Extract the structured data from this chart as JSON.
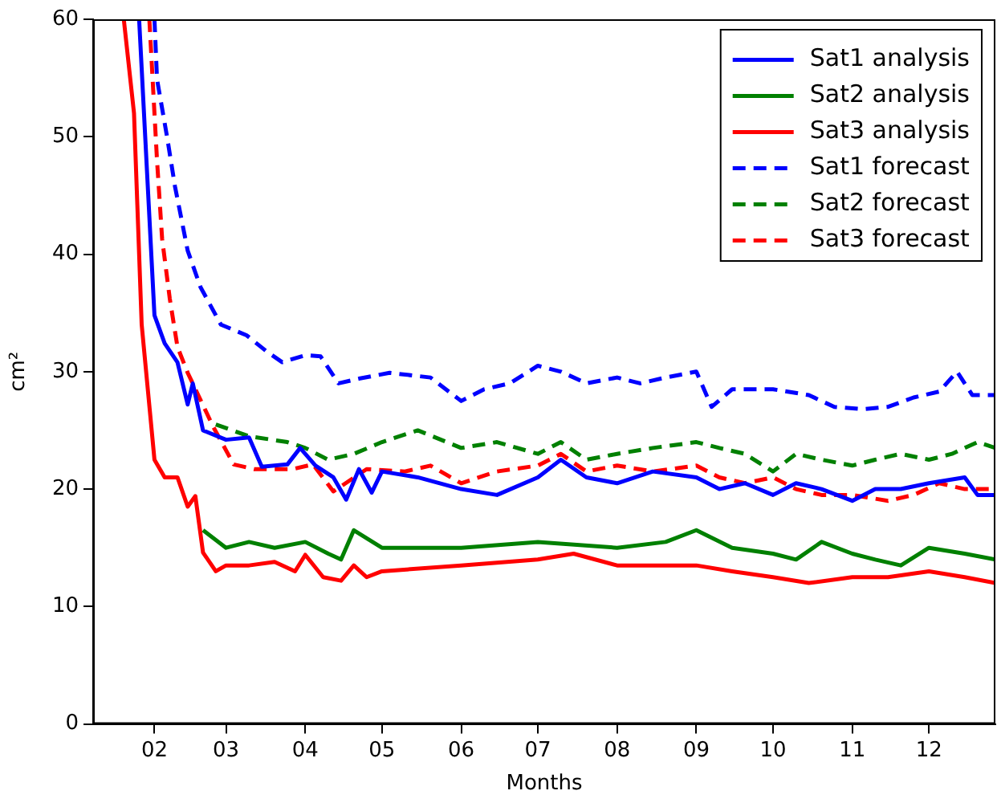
{
  "chart_data": {
    "type": "line",
    "xlabel": "Months",
    "ylabel": "cm²",
    "xlim": [
      "--01-08",
      "--12-27"
    ],
    "ylim": [
      0,
      60
    ],
    "xticks": [
      {
        "value": "--02-01",
        "label": "02"
      },
      {
        "value": "--03-01",
        "label": "03"
      },
      {
        "value": "--04-01",
        "label": "04"
      },
      {
        "value": "--05-01",
        "label": "05"
      },
      {
        "value": "--06-01",
        "label": "06"
      },
      {
        "value": "--07-01",
        "label": "07"
      },
      {
        "value": "--08-01",
        "label": "08"
      },
      {
        "value": "--09-01",
        "label": "09"
      },
      {
        "value": "--10-01",
        "label": "10"
      },
      {
        "value": "--11-01",
        "label": "11"
      },
      {
        "value": "--12-01",
        "label": "12"
      }
    ],
    "yticks": [
      0,
      10,
      20,
      30,
      40,
      50,
      60
    ],
    "grid": false,
    "legend": "top right",
    "marker": "none",
    "series": [
      {
        "name": "Sat1 analysis",
        "color": "#0000ff",
        "line_style": "solid",
        "x": [
          "--01-26",
          "--02-01",
          "--02-05",
          "--02-10",
          "--02-14",
          "--02-16",
          "--02-20",
          "--03-01",
          "--03-10",
          "--03-15",
          "--03-25",
          "--03-30",
          "--04-05",
          "--04-12",
          "--04-17",
          "--04-22",
          "--04-27",
          "--05-01",
          "--05-15",
          "--06-01",
          "--06-15",
          "--07-01",
          "--07-10",
          "--07-20",
          "--08-01",
          "--08-15",
          "--09-01",
          "--09-10",
          "--09-20",
          "--10-01",
          "--10-10",
          "--10-20",
          "--11-01",
          "--11-10",
          "--11-20",
          "--12-01",
          "--12-15",
          "--12-20",
          "--12-27"
        ],
        "values": [
          60,
          34.8,
          32.4,
          30.8,
          27.2,
          29,
          25,
          24.2,
          24.4,
          21.9,
          22.1,
          23.5,
          22,
          21,
          19.1,
          21.7,
          19.7,
          21.5,
          21,
          20,
          19.5,
          21,
          22.5,
          21,
          20.5,
          21.5,
          21,
          20,
          20.5,
          19.5,
          20.5,
          20,
          19,
          20,
          20,
          20.5,
          21,
          19.5,
          19.5
        ]
      },
      {
        "name": "Sat2 analysis",
        "color": "#008000",
        "line_style": "solid",
        "x": [
          "--02-20",
          "--03-01",
          "--03-10",
          "--03-20",
          "--04-01",
          "--04-10",
          "--04-15",
          "--04-20",
          "--05-01",
          "--06-01",
          "--07-01",
          "--08-01",
          "--08-20",
          "--09-01",
          "--09-15",
          "--10-01",
          "--10-10",
          "--10-20",
          "--11-01",
          "--11-10",
          "--11-20",
          "--12-01",
          "--12-15",
          "--12-27"
        ],
        "values": [
          16.5,
          15,
          15.5,
          15,
          15.5,
          14.5,
          14,
          16.5,
          15,
          15,
          15.5,
          15,
          15.5,
          16.5,
          15,
          14.5,
          14,
          15.5,
          14.5,
          14,
          13.5,
          15,
          14.5,
          14
        ]
      },
      {
        "name": "Sat3 analysis",
        "color": "#ff0000",
        "line_style": "solid",
        "x": [
          "--01-20",
          "--01-24",
          "--01-27",
          "--02-01",
          "--02-05",
          "--02-10",
          "--02-14",
          "--02-17",
          "--02-20",
          "--02-25",
          "--03-01",
          "--03-10",
          "--03-20",
          "--03-28",
          "--04-01",
          "--04-08",
          "--04-15",
          "--04-20",
          "--04-25",
          "--05-01",
          "--06-01",
          "--07-01",
          "--07-15",
          "--08-01",
          "--09-01",
          "--09-15",
          "--10-01",
          "--10-15",
          "--11-01",
          "--11-15",
          "--12-01",
          "--12-15",
          "--12-27"
        ],
        "values": [
          60,
          52,
          34,
          22.5,
          21,
          21,
          18.5,
          19.4,
          14.6,
          13,
          13.5,
          13.5,
          13.8,
          13,
          14.4,
          12.5,
          12.2,
          13.5,
          12.5,
          13,
          13.5,
          14,
          14.5,
          13.5,
          13.5,
          13,
          12.5,
          12,
          12.5,
          12.5,
          13,
          12.5,
          12
        ]
      },
      {
        "name": "Sat1 forecast",
        "color": "#0000ff",
        "line_style": "dashed",
        "x": [
          "--02-01",
          "--02-02",
          "--02-06",
          "--02-09",
          "--02-14",
          "--02-19",
          "--02-27",
          "--03-09",
          "--03-17",
          "--03-23",
          "--04-01",
          "--04-07",
          "--04-14",
          "--04-22",
          "--05-04",
          "--05-20",
          "--06-01",
          "--06-10",
          "--06-20",
          "--07-01",
          "--07-10",
          "--07-20",
          "--08-01",
          "--08-10",
          "--08-20",
          "--09-01",
          "--09-07",
          "--09-15",
          "--10-01",
          "--10-15",
          "--10-25",
          "--11-05",
          "--11-15",
          "--11-25",
          "--12-05",
          "--12-12",
          "--12-18",
          "--12-27"
        ],
        "values": [
          60,
          54.9,
          49.9,
          45.8,
          40.3,
          37.2,
          34,
          33.1,
          31.7,
          30.8,
          31.4,
          31.3,
          29,
          29.4,
          29.9,
          29.5,
          27.5,
          28.5,
          29,
          30.5,
          30,
          29,
          29.5,
          29,
          29.5,
          30,
          27,
          28.5,
          28.5,
          28,
          27,
          26.8,
          27,
          27.8,
          28.3,
          30,
          28,
          28
        ]
      },
      {
        "name": "Sat2 forecast",
        "color": "#008000",
        "line_style": "dashed",
        "x": [
          "--02-25",
          "--03-10",
          "--03-25",
          "--04-01",
          "--04-10",
          "--04-20",
          "--05-01",
          "--05-15",
          "--06-01",
          "--06-15",
          "--07-01",
          "--07-10",
          "--07-20",
          "--08-01",
          "--08-15",
          "--09-01",
          "--09-10",
          "--09-20",
          "--10-01",
          "--10-10",
          "--10-20",
          "--11-01",
          "--11-10",
          "--11-20",
          "--12-01",
          "--12-10",
          "--12-20",
          "--12-27"
        ],
        "values": [
          25.5,
          24.5,
          24,
          23.5,
          22.5,
          23,
          24,
          25,
          23.5,
          24,
          23,
          24,
          22.5,
          23,
          23.5,
          24,
          23.5,
          23,
          21.5,
          23,
          22.5,
          22,
          22.5,
          23,
          22.5,
          23,
          24,
          23.5
        ]
      },
      {
        "name": "Sat3 forecast",
        "color": "#ff0000",
        "line_style": "dashed",
        "x": [
          "--01-30",
          "--02-02",
          "--02-04",
          "--02-07",
          "--02-10",
          "--02-14",
          "--02-24",
          "--03-04",
          "--03-12",
          "--03-27",
          "--04-04",
          "--04-12",
          "--04-25",
          "--05-10",
          "--05-20",
          "--06-01",
          "--06-15",
          "--07-01",
          "--07-10",
          "--07-20",
          "--08-01",
          "--08-15",
          "--09-01",
          "--09-10",
          "--09-20",
          "--10-01",
          "--10-10",
          "--10-20",
          "--11-01",
          "--11-15",
          "--11-25",
          "--12-05",
          "--12-15",
          "--12-27"
        ],
        "values": [
          60,
          48,
          41.3,
          36.2,
          32.1,
          29.9,
          25.3,
          22.1,
          21.7,
          21.7,
          22.1,
          19.8,
          21.7,
          21.5,
          22,
          20.5,
          21.5,
          22,
          23,
          21.5,
          22,
          21.5,
          22,
          21,
          20.5,
          21,
          20,
          19.5,
          19.5,
          19,
          19.5,
          20.5,
          20,
          20
        ]
      }
    ]
  }
}
